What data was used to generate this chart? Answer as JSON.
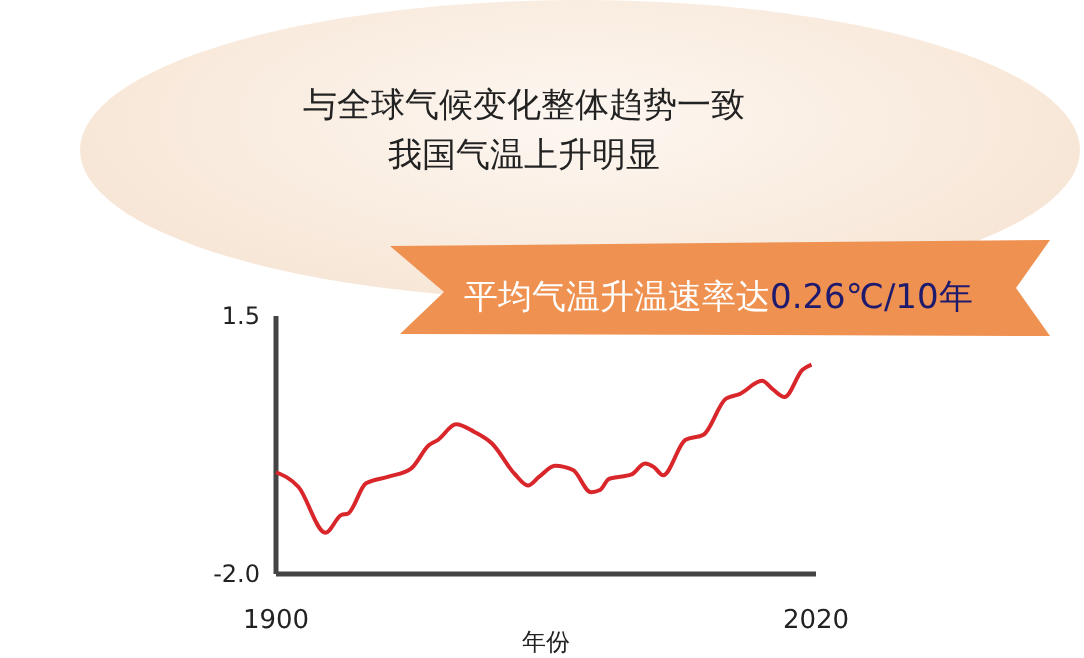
{
  "chart_data": {
    "type": "line",
    "title": "与全球气候变化整体趋势一致",
    "subtitle": "我国气温上升明显",
    "annotations": [
      "平均气温升温速率达0.26℃/10年"
    ],
    "xlabel": "年份",
    "x": [
      1900,
      1905,
      1911,
      1914.5,
      1916,
      1920,
      1925,
      1930,
      1934,
      1936,
      1940,
      1944,
      1948,
      1953,
      1956,
      1958.5,
      1962,
      1966,
      1970,
      1972,
      1974,
      1979,
      1982,
      1984,
      1986,
      1991,
      1995,
      2000,
      2003,
      2008,
      2010.5,
      2013,
      2017,
      2019
    ],
    "series": [
      {
        "color": "#d9262b",
        "values": [
          -0.62,
          -0.82,
          -1.44,
          -1.2,
          -1.18,
          -0.77,
          -0.68,
          -0.57,
          -0.25,
          -0.18,
          0.03,
          -0.07,
          -0.23,
          -0.64,
          -0.8,
          -0.68,
          -0.53,
          -0.59,
          -0.89,
          -0.86,
          -0.71,
          -0.65,
          -0.5,
          -0.55,
          -0.66,
          -0.18,
          -0.11,
          0.38,
          0.44,
          0.62,
          0.5,
          0.4,
          0.77,
          0.84
        ]
      }
    ],
    "xlim": [
      1900,
      2020
    ],
    "xticks": [
      1900,
      2020
    ],
    "ylim": [
      -2,
      1.5
    ],
    "yticks": [
      {
        "value": 1.5,
        "label": "1.5"
      },
      {
        "value": -2,
        "label": "-2.0"
      }
    ],
    "grid": false,
    "marker": "none",
    "line_style": "solid"
  }
}
